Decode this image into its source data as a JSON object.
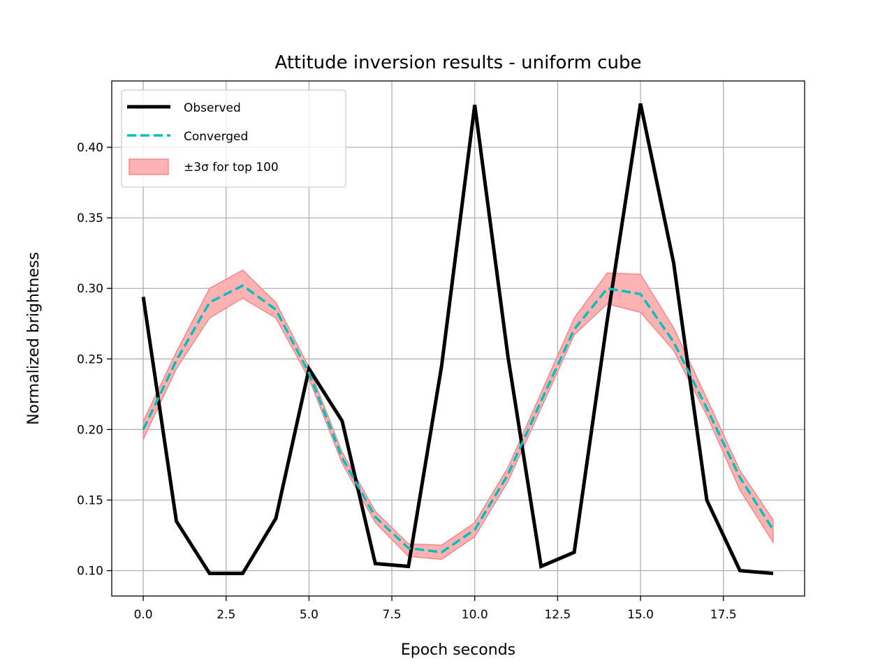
{
  "chart_data": {
    "type": "line",
    "title": "Attitude inversion results - uniform cube",
    "xlabel": "Epoch seconds",
    "ylabel": "Normalized brightness",
    "xlim": [
      -0.95,
      19.95
    ],
    "ylim": [
      0.082,
      0.447
    ],
    "xticks": [
      0.0,
      2.5,
      5.0,
      7.5,
      10.0,
      12.5,
      15.0,
      17.5
    ],
    "xtick_labels": [
      "0.0",
      "2.5",
      "5.0",
      "7.5",
      "10.0",
      "12.5",
      "15.0",
      "17.5"
    ],
    "yticks": [
      0.1,
      0.15,
      0.2,
      0.25,
      0.3,
      0.35,
      0.4
    ],
    "ytick_labels": [
      "0.10",
      "0.15",
      "0.20",
      "0.25",
      "0.30",
      "0.35",
      "0.40"
    ],
    "grid": true,
    "legend_position": "top-left",
    "x": [
      0,
      1,
      2,
      3,
      4,
      5,
      6,
      7,
      8,
      9,
      10,
      11,
      12,
      13,
      14,
      15,
      16,
      17,
      18,
      19
    ],
    "series": [
      {
        "name": "Observed",
        "color": "#000000",
        "style": "solid",
        "values": [
          0.294,
          0.135,
          0.098,
          0.098,
          0.137,
          0.243,
          0.206,
          0.105,
          0.103,
          0.245,
          0.43,
          0.252,
          0.103,
          0.113,
          0.278,
          0.431,
          0.318,
          0.15,
          0.1,
          0.098
        ]
      },
      {
        "name": "Converged",
        "color": "#00bfbf",
        "style": "dashed",
        "values": [
          0.2,
          0.249,
          0.29,
          0.302,
          0.285,
          0.24,
          0.18,
          0.138,
          0.116,
          0.113,
          0.129,
          0.168,
          0.22,
          0.271,
          0.3,
          0.296,
          0.262,
          0.215,
          0.166,
          0.129
        ]
      }
    ],
    "band": {
      "name": "±3σ for top 100",
      "color": "#f08080",
      "lower": [
        0.193,
        0.243,
        0.279,
        0.293,
        0.279,
        0.236,
        0.176,
        0.134,
        0.11,
        0.108,
        0.124,
        0.163,
        0.215,
        0.267,
        0.289,
        0.283,
        0.256,
        0.21,
        0.157,
        0.12
      ],
      "upper": [
        0.206,
        0.255,
        0.3,
        0.313,
        0.29,
        0.244,
        0.184,
        0.142,
        0.119,
        0.118,
        0.134,
        0.173,
        0.226,
        0.279,
        0.311,
        0.31,
        0.272,
        0.222,
        0.171,
        0.136
      ]
    }
  }
}
